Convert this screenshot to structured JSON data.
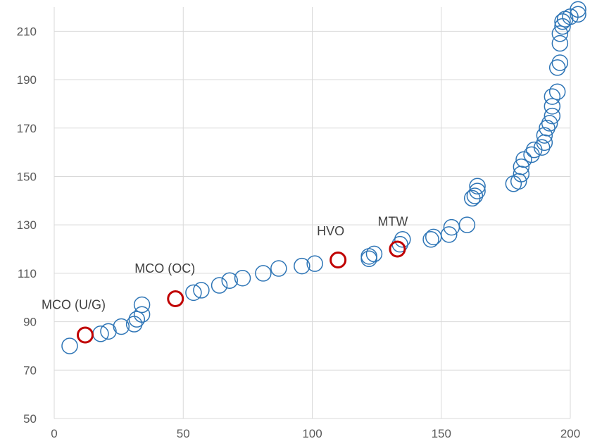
{
  "chart_data": {
    "type": "scatter",
    "title": "",
    "xlabel": "",
    "ylabel": "",
    "xlim": [
      0,
      200
    ],
    "ylim": [
      50,
      220
    ],
    "x_ticks": [
      0,
      50,
      100,
      150,
      200
    ],
    "y_ticks": [
      50,
      70,
      90,
      110,
      130,
      150,
      170,
      190,
      210
    ],
    "x_tick_labels": [
      "0",
      "50",
      "100",
      "150",
      "200"
    ],
    "y_tick_labels": [
      "50",
      "70",
      "90",
      "110",
      "130",
      "150",
      "170",
      "190",
      "210"
    ],
    "grid": true,
    "legend": "none",
    "series": [
      {
        "color": "#2e75b6",
        "points": [
          [
            6,
            80
          ],
          [
            18,
            85
          ],
          [
            21,
            86
          ],
          [
            26,
            88
          ],
          [
            31,
            89
          ],
          [
            32,
            91
          ],
          [
            34,
            93
          ],
          [
            34,
            97
          ],
          [
            54,
            102
          ],
          [
            57,
            103
          ],
          [
            64,
            105
          ],
          [
            68,
            107
          ],
          [
            73,
            108
          ],
          [
            81,
            110
          ],
          [
            87,
            112
          ],
          [
            96,
            113
          ],
          [
            101,
            114
          ],
          [
            122,
            116
          ],
          [
            122,
            117
          ],
          [
            124,
            118
          ],
          [
            134,
            122
          ],
          [
            135,
            124
          ],
          [
            146,
            124
          ],
          [
            147,
            125
          ],
          [
            153,
            126
          ],
          [
            154,
            129
          ],
          [
            160,
            130
          ],
          [
            162,
            141
          ],
          [
            163,
            142
          ],
          [
            164,
            144
          ],
          [
            164,
            146
          ],
          [
            178,
            147
          ],
          [
            180,
            148
          ],
          [
            181,
            151
          ],
          [
            181,
            154
          ],
          [
            182,
            157
          ],
          [
            185,
            159
          ],
          [
            186,
            161
          ],
          [
            189,
            162
          ],
          [
            190,
            164
          ],
          [
            190,
            167
          ],
          [
            191,
            170
          ],
          [
            192,
            172
          ],
          [
            193,
            175
          ],
          [
            193,
            179
          ],
          [
            193,
            183
          ],
          [
            195,
            185
          ],
          [
            195,
            195
          ],
          [
            196,
            197
          ],
          [
            196,
            205
          ],
          [
            196,
            209
          ],
          [
            197,
            212
          ],
          [
            197,
            214
          ],
          [
            198,
            215
          ],
          [
            200,
            216
          ],
          [
            203,
            217
          ],
          [
            203,
            219
          ]
        ]
      },
      {
        "color": "#c00000",
        "points": [
          [
            12,
            84.5
          ],
          [
            47,
            99.5
          ],
          [
            110,
            115.5
          ],
          [
            133,
            120
          ]
        ]
      }
    ],
    "annotations": [
      {
        "text": "MCO (U/G)",
        "x": 12,
        "y": 84.5
      },
      {
        "text": "MCO (OC)",
        "x": 47,
        "y": 99.5
      },
      {
        "text": "HVO",
        "x": 110,
        "y": 115.5
      },
      {
        "text": "MTW",
        "x": 133,
        "y": 120
      }
    ]
  }
}
